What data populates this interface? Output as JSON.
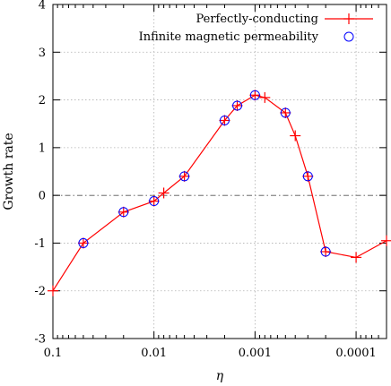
{
  "chart_data": {
    "type": "line",
    "xlabel": "η",
    "ylabel": "Growth rate",
    "x_scale": "log",
    "x_reversed": true,
    "xlim": [
      0.1,
      5e-05
    ],
    "ylim": [
      -3,
      4
    ],
    "x_ticks": [
      0.1,
      0.01,
      0.001,
      0.0001
    ],
    "x_tick_labels": [
      "0.1",
      "0.01",
      "0.001",
      "0.0001"
    ],
    "y_ticks": [
      -3,
      -2,
      -1,
      0,
      1,
      2,
      3,
      4
    ],
    "y_tick_labels": [
      "-3",
      "-2",
      "-1",
      "0",
      "1",
      "2",
      "3",
      "4"
    ],
    "grid": true,
    "zero_line": true,
    "legend_position": "top-right",
    "series": [
      {
        "name": "Perfectly-conducting",
        "color": "#ff0000",
        "style": "line+plus",
        "x": [
          0.1,
          0.05,
          0.02,
          0.01,
          0.008,
          0.005,
          0.002,
          0.0015,
          0.001,
          0.0008,
          0.0005,
          0.0004,
          0.0003,
          0.0002,
          0.0001,
          5e-05
        ],
        "y": [
          -2.0,
          -1.0,
          -0.35,
          -0.12,
          0.05,
          0.4,
          1.57,
          1.88,
          2.1,
          2.05,
          1.73,
          1.25,
          0.4,
          -1.18,
          -1.3,
          -0.95
        ]
      },
      {
        "name": "Infinite magnetic permeability",
        "color": "#0000ff",
        "style": "open-circle",
        "x": [
          0.05,
          0.02,
          0.01,
          0.005,
          0.002,
          0.0015,
          0.001,
          0.0005,
          0.0003,
          0.0002
        ],
        "y": [
          -1.0,
          -0.35,
          -0.12,
          0.4,
          1.57,
          1.88,
          2.1,
          1.73,
          0.4,
          -1.18
        ]
      }
    ]
  }
}
